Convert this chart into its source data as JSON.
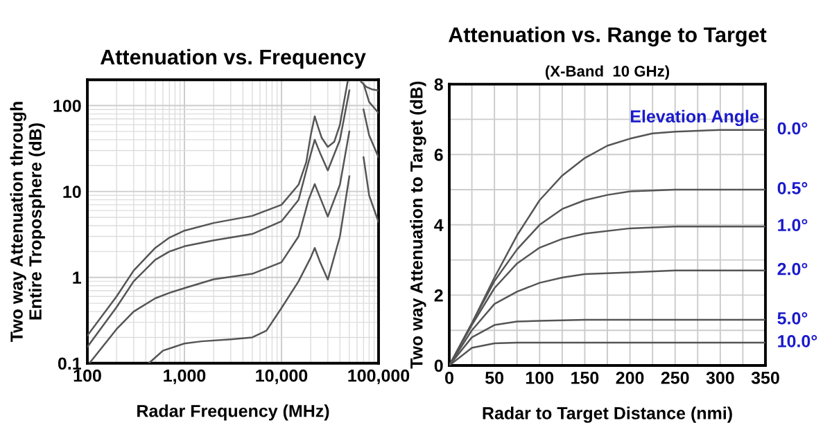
{
  "chart_data": [
    {
      "type": "line",
      "title": "Attenuation vs. Frequency",
      "xlabel": "Radar Frequency (MHz)",
      "ylabel": "Two way Attenuation through\nEntire Troposphere (dB)",
      "log": "xy",
      "grid": true,
      "legend": false,
      "xlim": [
        100,
        100000
      ],
      "ylim": [
        0.1,
        200
      ],
      "xticks": [
        100,
        {
          "value": 1000,
          "label": "1,000"
        },
        {
          "value": 10000,
          "label": "10,000"
        },
        {
          "value": 100000,
          "label": "100,000"
        }
      ],
      "yticks": [
        0.1,
        1,
        10,
        100
      ],
      "series": [
        {
          "color": "#555555",
          "x": [
            100,
            200,
            300,
            500,
            700,
            1000,
            2000,
            5000,
            10000,
            15000,
            18000,
            20000,
            22000,
            24000,
            26000,
            30000,
            35000,
            40000,
            48000,
            55000,
            66000,
            75000,
            85000,
            100000
          ],
          "values": [
            0.21,
            0.6,
            1.2,
            2.2,
            2.9,
            3.5,
            4.3,
            5.2,
            7,
            12,
            22,
            45,
            75,
            55,
            42,
            33,
            38,
            60,
            190,
            null,
            190,
            165,
            155,
            150
          ]
        },
        {
          "color": "#555555",
          "x": [
            100,
            200,
            300,
            500,
            700,
            1000,
            2000,
            5000,
            10000,
            15000,
            19000,
            22000,
            25000,
            30000,
            40000,
            50000,
            56000,
            70000,
            80000,
            100000
          ],
          "values": [
            0.155,
            0.45,
            0.9,
            1.6,
            2.0,
            2.3,
            2.7,
            3.2,
            4.5,
            8,
            22,
            40,
            28,
            17.6,
            40,
            150,
            null,
            180,
            110,
            82
          ]
        },
        {
          "color": "#555555",
          "x": [
            105,
            200,
            300,
            500,
            700,
            1000,
            2000,
            5000,
            10000,
            15000,
            19000,
            22000,
            25000,
            30000,
            40000,
            50000,
            56000,
            70000,
            80000,
            100000
          ],
          "values": [
            0.1,
            0.25,
            0.4,
            0.57,
            0.66,
            0.75,
            0.95,
            1.1,
            1.5,
            3,
            8,
            12.2,
            8.5,
            5.1,
            12,
            50,
            null,
            90,
            45,
            25
          ]
        },
        {
          "color": "#555555",
          "x": [
            430,
            600,
            1000,
            1500,
            3000,
            5000,
            7000,
            10000,
            15000,
            20000,
            22000,
            25000,
            30000,
            40000,
            50000,
            56000,
            70000,
            80000,
            100000
          ],
          "values": [
            0.1,
            0.14,
            0.17,
            0.18,
            0.19,
            0.2,
            0.24,
            0.44,
            0.9,
            1.7,
            2.2,
            1.5,
            0.94,
            3,
            15,
            null,
            25,
            9,
            4.4
          ]
        }
      ]
    },
    {
      "type": "line",
      "title": "Attenuation vs. Range to Target",
      "subtitle": "(X-Band  10 GHz)",
      "xlabel": "Radar to Target Distance (nmi)",
      "ylabel": "Two way Attenuation to Target (dB)",
      "legend_title": "Elevation Angle",
      "grid": true,
      "legend": false,
      "xlim": [
        0,
        350
      ],
      "ylim": [
        0,
        8
      ],
      "xticks": [
        0,
        {
          "value": 25,
          "label": null
        },
        50,
        {
          "value": 75,
          "label": null
        },
        100,
        {
          "value": 125,
          "label": null
        },
        150,
        {
          "value": 175,
          "label": null
        },
        200,
        {
          "value": 225,
          "label": null
        },
        250,
        {
          "value": 275,
          "label": null
        },
        300,
        {
          "value": 325,
          "label": null
        },
        350
      ],
      "yticks": [
        0,
        {
          "value": 1,
          "label": null
        },
        2,
        {
          "value": 3,
          "label": null
        },
        4,
        {
          "value": 5,
          "label": null
        },
        6,
        {
          "value": 7,
          "label": null
        },
        8
      ],
      "series": [
        {
          "name": "0.0°",
          "color": "#555555",
          "x": [
            0,
            25,
            50,
            75,
            100,
            125,
            150,
            175,
            200,
            225,
            250,
            300,
            350
          ],
          "values": [
            0,
            1.2,
            2.5,
            3.7,
            4.7,
            5.4,
            5.9,
            6.25,
            6.45,
            6.6,
            6.65,
            6.7,
            6.7
          ]
        },
        {
          "name": "0.5°",
          "color": "#555555",
          "x": [
            0,
            25,
            50,
            75,
            100,
            125,
            150,
            175,
            200,
            250,
            350
          ],
          "values": [
            0,
            1.2,
            2.4,
            3.3,
            4.0,
            4.45,
            4.7,
            4.85,
            4.95,
            5.0,
            5.0
          ]
        },
        {
          "name": "1.0°",
          "color": "#555555",
          "x": [
            0,
            25,
            50,
            75,
            100,
            125,
            150,
            200,
            250,
            350
          ],
          "values": [
            0,
            1.15,
            2.2,
            2.9,
            3.35,
            3.6,
            3.75,
            3.9,
            3.95,
            3.95
          ]
        },
        {
          "name": "2.0°",
          "color": "#555555",
          "x": [
            0,
            25,
            50,
            75,
            100,
            125,
            150,
            200,
            250,
            350
          ],
          "values": [
            0,
            1.0,
            1.75,
            2.1,
            2.35,
            2.5,
            2.6,
            2.65,
            2.7,
            2.7
          ]
        },
        {
          "name": "5.0°",
          "color": "#555555",
          "x": [
            0,
            25,
            50,
            75,
            100,
            150,
            350
          ],
          "values": [
            0,
            0.8,
            1.15,
            1.25,
            1.27,
            1.3,
            1.3
          ]
        },
        {
          "name": "10.0°",
          "color": "#555555",
          "x": [
            0,
            25,
            50,
            75,
            350
          ],
          "values": [
            0,
            0.5,
            0.63,
            0.65,
            0.65
          ]
        }
      ]
    }
  ]
}
